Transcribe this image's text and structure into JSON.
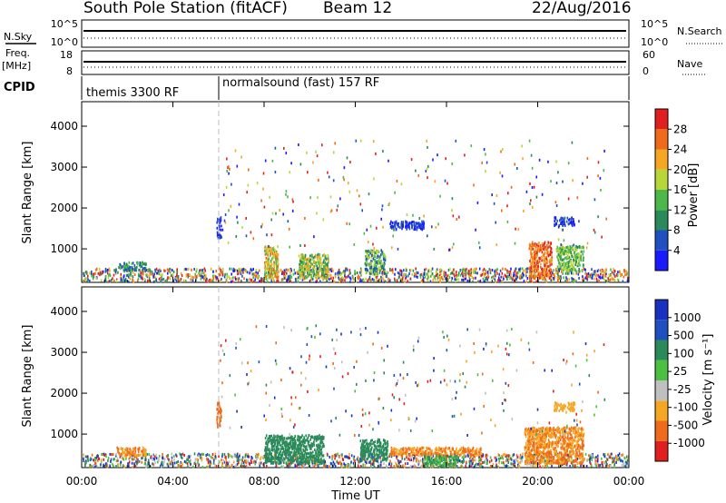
{
  "header": {
    "station": "South Pole Station (fitACF)",
    "beam": "Beam 12",
    "date": "22/Aug/2016"
  },
  "strip": {
    "nsky_label": "N.Sky",
    "nsearch_label": "N.Search",
    "nsky_ticks": [
      "10^5",
      "10^0"
    ],
    "freq_label_top": "Freq.",
    "freq_label_unit": "[MHz]",
    "freq_ticks": [
      "18",
      "8"
    ],
    "nave_label": "Nave",
    "nave_ticks": [
      "60",
      "0"
    ],
    "cpid_label": "CPID",
    "cpid_segments": [
      {
        "text": "themis 3300 RF",
        "start_hour": 0
      },
      {
        "text": "normalsound (fast) 157 RF",
        "start_hour": 6.0
      }
    ]
  },
  "colors": {
    "power": [
      "#1a1aff",
      "#2050c0",
      "#2a8a5a",
      "#4db84a",
      "#b8d63a",
      "#f5a623",
      "#ef6a1a",
      "#e02020"
    ],
    "velocity": [
      "#e02020",
      "#ef6a1a",
      "#f5a623",
      "#c0c0c0",
      "#4cc040",
      "#2a8a5a",
      "#2050c0",
      "#1a30c0"
    ]
  },
  "chart_data": [
    {
      "type": "heatmap",
      "title": "",
      "xlabel": "Time UT",
      "ylabel": "Slant Range [km]",
      "x_ticks": [
        "00:00",
        "04:00",
        "08:00",
        "12:00",
        "16:00",
        "20:00",
        "00:00"
      ],
      "y_ticks": [
        "1000",
        "2000",
        "3000",
        "4000"
      ],
      "xlim_hours": [
        0,
        24
      ],
      "ylim_km": [
        180,
        4600
      ],
      "colorbar_label": "Power [dB]",
      "colorbar_ticks": [
        "4",
        "8",
        "12",
        "16",
        "20",
        "24",
        "28"
      ],
      "clim": [
        0,
        30
      ]
    },
    {
      "type": "heatmap",
      "title": "",
      "xlabel": "Time UT",
      "ylabel": "Slant Range [km]",
      "x_ticks": [
        "00:00",
        "04:00",
        "08:00",
        "12:00",
        "16:00",
        "20:00",
        "00:00"
      ],
      "y_ticks": [
        "1000",
        "2000",
        "3000",
        "4000"
      ],
      "xlim_hours": [
        0,
        24
      ],
      "ylim_km": [
        180,
        4600
      ],
      "colorbar_label": "Velocity [m s⁻¹]",
      "colorbar_ticks": [
        "1000",
        "500",
        "100",
        "25",
        "-25",
        "-100",
        "-500",
        "-1000"
      ],
      "clim": [
        -1000,
        1000
      ]
    }
  ]
}
